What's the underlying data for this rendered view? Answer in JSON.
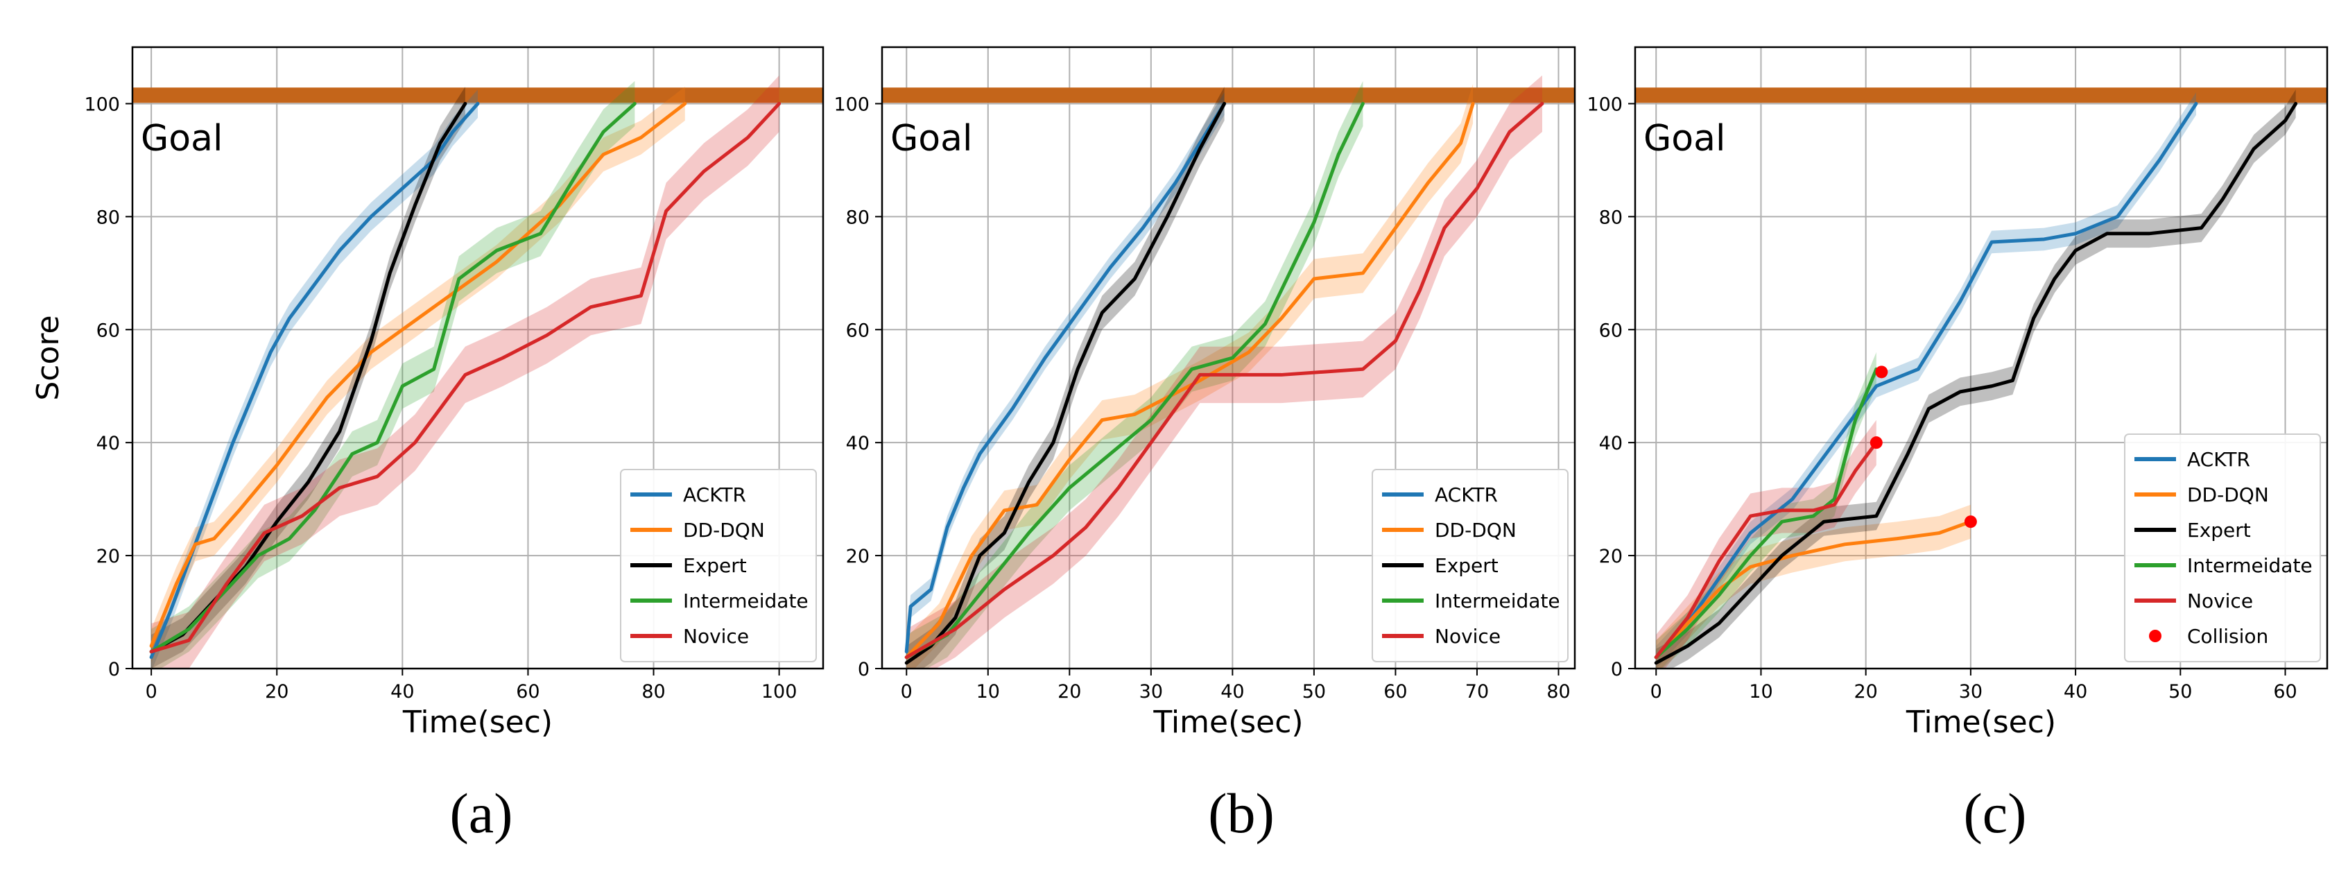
{
  "chart_data": [
    {
      "type": "line",
      "caption": "(a)",
      "xlabel": "Time(sec)",
      "ylabel": "Score",
      "xlim": [
        -3,
        107
      ],
      "ylim": [
        0,
        110
      ],
      "xticks": [
        0,
        20,
        40,
        60,
        80,
        100
      ],
      "yticks": [
        0,
        20,
        40,
        60,
        80,
        100
      ],
      "grid": true,
      "legend_position": "bottom-right",
      "goal": {
        "label": "Goal",
        "value": 101.5,
        "color": "#c4651a"
      },
      "series": [
        {
          "name": "ACKTR",
          "color": "#1f77b4",
          "band": 2.5,
          "x": [
            0,
            3,
            8,
            13,
            19,
            22,
            26,
            30,
            35,
            40,
            45,
            48,
            52
          ],
          "y": [
            2,
            10,
            25,
            40,
            56,
            62,
            68,
            74,
            80,
            85,
            90,
            95,
            100
          ]
        },
        {
          "name": "DD-DQN",
          "color": "#ff7f0e",
          "band": 3,
          "x": [
            0,
            4,
            7,
            10,
            14,
            20,
            28,
            35,
            45,
            55,
            65,
            72,
            78,
            85
          ],
          "y": [
            4,
            15,
            22,
            23,
            28,
            36,
            48,
            56,
            64,
            72,
            82,
            91,
            94,
            100
          ]
        },
        {
          "name": "Expert",
          "color": "#000000",
          "band": 3,
          "x": [
            0,
            5,
            10,
            15,
            20,
            25,
            30,
            35,
            38,
            42,
            46,
            50
          ],
          "y": [
            3,
            6,
            12,
            18,
            26,
            33,
            42,
            58,
            70,
            82,
            93,
            100
          ]
        },
        {
          "name": "Intermeidate",
          "color": "#2ca02c",
          "band": 4,
          "x": [
            0,
            6,
            12,
            17,
            22,
            26,
            32,
            36,
            40,
            45,
            49,
            55,
            62,
            68,
            72,
            77
          ],
          "y": [
            3,
            7,
            14,
            20,
            23,
            28,
            38,
            40,
            50,
            53,
            69,
            74,
            77,
            88,
            95,
            100
          ]
        },
        {
          "name": "Novice",
          "color": "#d62728",
          "band": 5,
          "x": [
            0,
            6,
            12,
            18,
            24,
            30,
            36,
            42,
            50,
            56,
            63,
            70,
            78,
            82,
            88,
            95,
            100
          ],
          "y": [
            3,
            5,
            15,
            24,
            27,
            32,
            34,
            40,
            52,
            55,
            59,
            64,
            66,
            81,
            88,
            94,
            100
          ]
        }
      ],
      "legend": [
        "ACKTR",
        "DD-DQN",
        "Expert",
        "Intermeidate",
        "Novice"
      ]
    },
    {
      "type": "line",
      "caption": "(b)",
      "xlabel": "Time(sec)",
      "ylabel": "",
      "xlim": [
        -3,
        82
      ],
      "ylim": [
        0,
        110
      ],
      "xticks": [
        0,
        10,
        20,
        30,
        40,
        50,
        60,
        70,
        80
      ],
      "yticks": [
        0,
        20,
        40,
        60,
        80,
        100
      ],
      "grid": true,
      "legend_position": "bottom-right",
      "goal": {
        "label": "Goal",
        "value": 101.5,
        "color": "#c4651a"
      },
      "series": [
        {
          "name": "ACKTR",
          "color": "#1f77b4",
          "band": 2,
          "x": [
            0,
            0.5,
            3,
            5,
            7,
            9,
            13,
            17,
            21,
            25,
            29,
            33,
            36,
            39
          ],
          "y": [
            3,
            11,
            14,
            25,
            32,
            38,
            46,
            55,
            63,
            71,
            78,
            86,
            93,
            100
          ]
        },
        {
          "name": "DD-DQN",
          "color": "#ff7f0e",
          "band": 3.5,
          "x": [
            0,
            4,
            8,
            12,
            16,
            20,
            24,
            28,
            32,
            36,
            42,
            46,
            50,
            56,
            60,
            64,
            68,
            69.5
          ],
          "y": [
            2,
            8,
            20,
            28,
            29,
            37,
            44,
            45,
            48,
            51,
            56,
            62,
            69,
            70,
            78,
            86,
            93,
            100
          ]
        },
        {
          "name": "Expert",
          "color": "#000000",
          "band": 3,
          "x": [
            0,
            3,
            6,
            9,
            12,
            15,
            18,
            21,
            24,
            28,
            32,
            36,
            39
          ],
          "y": [
            1,
            4,
            9,
            20,
            24,
            33,
            40,
            53,
            63,
            69,
            80,
            92,
            100
          ]
        },
        {
          "name": "Intermeidate",
          "color": "#2ca02c",
          "band": 4,
          "x": [
            0,
            5,
            10,
            15,
            20,
            25,
            30,
            35,
            40,
            44,
            47,
            50,
            53,
            56
          ],
          "y": [
            2,
            6,
            15,
            24,
            32,
            38,
            44,
            53,
            55,
            61,
            70,
            79,
            91,
            100
          ]
        },
        {
          "name": "Novice",
          "color": "#d62728",
          "band": 5,
          "x": [
            0,
            6,
            12,
            18,
            22,
            26,
            30,
            36,
            46,
            56,
            60,
            63,
            66,
            70,
            74,
            78
          ],
          "y": [
            2,
            7,
            14,
            20,
            25,
            32,
            40,
            52,
            52,
            53,
            58,
            67,
            78,
            85,
            95,
            100
          ]
        }
      ],
      "legend": [
        "ACKTR",
        "DD-DQN",
        "Expert",
        "Intermeidate",
        "Novice"
      ]
    },
    {
      "type": "line",
      "caption": "(c)",
      "xlabel": "Time(sec)",
      "ylabel": "",
      "xlim": [
        -2,
        64
      ],
      "ylim": [
        0,
        110
      ],
      "xticks": [
        0,
        10,
        20,
        30,
        40,
        50,
        60
      ],
      "yticks": [
        0,
        20,
        40,
        60,
        80,
        100
      ],
      "grid": true,
      "legend_position": "bottom-right",
      "goal": {
        "label": "Goal",
        "value": 101.5,
        "color": "#c4651a"
      },
      "series": [
        {
          "name": "ACKTR",
          "color": "#1f77b4",
          "band": 2,
          "x": [
            0,
            3,
            6,
            9,
            13,
            17,
            21,
            25,
            29,
            32,
            37,
            40,
            44,
            48,
            51.5
          ],
          "y": [
            2,
            8,
            16,
            24,
            30,
            40,
            50,
            53,
            65,
            75.5,
            76,
            77,
            80,
            90,
            100
          ]
        },
        {
          "name": "DD-DQN",
          "color": "#ff7f0e",
          "band": 3,
          "x": [
            0,
            3,
            6,
            9,
            13,
            18,
            23,
            27,
            30
          ],
          "y": [
            2,
            8,
            14,
            18,
            20,
            22,
            23,
            24,
            26
          ]
        },
        {
          "name": "Expert",
          "color": "#000000",
          "band": 2.5,
          "x": [
            0,
            3,
            6,
            9,
            12,
            16,
            21,
            24,
            26,
            29,
            32,
            34,
            36,
            38,
            40,
            43,
            47,
            52,
            54,
            57,
            60,
            61
          ],
          "y": [
            1,
            4,
            8,
            14,
            20,
            26,
            27,
            38,
            46,
            49,
            50,
            51,
            62,
            69,
            74,
            77,
            77,
            78,
            83,
            92,
            97,
            100
          ]
        },
        {
          "name": "Intermeidate",
          "color": "#2ca02c",
          "band": 3,
          "x": [
            0,
            3,
            6,
            9,
            12,
            15,
            17,
            19,
            21
          ],
          "y": [
            2,
            7,
            13,
            20,
            26,
            27,
            30,
            44,
            53
          ]
        },
        {
          "name": "Novice",
          "color": "#d62728",
          "band": 4,
          "x": [
            0,
            3,
            6,
            9,
            12,
            15,
            17,
            19,
            21
          ],
          "y": [
            2,
            9,
            19,
            27,
            28,
            28,
            29,
            35,
            40
          ]
        }
      ],
      "collisions": {
        "name": "Collision",
        "color": "#ff0000",
        "x": [
          21.5,
          21,
          30
        ],
        "y": [
          52.5,
          40,
          26
        ]
      },
      "legend": [
        "ACKTR",
        "DD-DQN",
        "Expert",
        "Intermeidate",
        "Novice",
        "Collision"
      ]
    }
  ]
}
